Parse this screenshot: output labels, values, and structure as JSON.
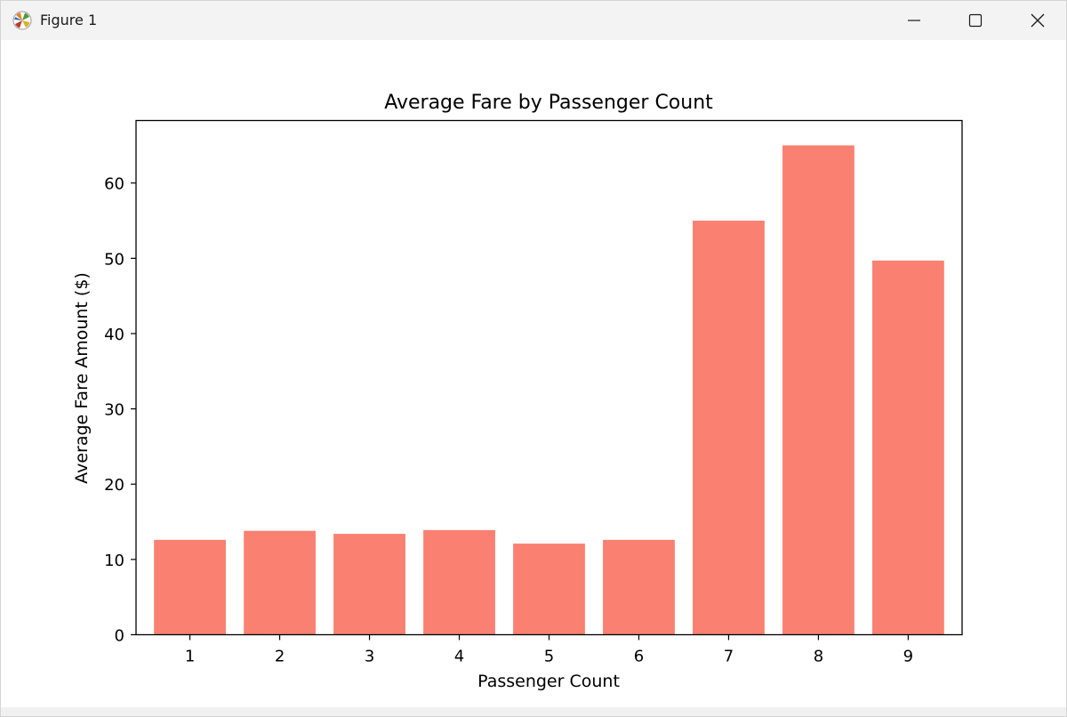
{
  "window": {
    "title": "Figure 1"
  },
  "icons": {
    "app": "matplotlib-icon",
    "minimize": "minimize-icon",
    "maximize": "maximize-icon",
    "close": "close-icon"
  },
  "chart_data": {
    "type": "bar",
    "title": "Average Fare by Passenger Count",
    "xlabel": "Passenger Count",
    "ylabel": "Average Fare Amount ($)",
    "categories": [
      "1",
      "2",
      "3",
      "4",
      "5",
      "6",
      "7",
      "8",
      "9"
    ],
    "values": [
      12.6,
      13.8,
      13.4,
      13.9,
      12.1,
      12.6,
      55.0,
      65.0,
      49.7
    ],
    "ylim": [
      0,
      68.3
    ],
    "yticks": [
      0,
      10,
      20,
      30,
      40,
      50,
      60
    ],
    "bar_color": "#fa8072",
    "grid": false
  }
}
